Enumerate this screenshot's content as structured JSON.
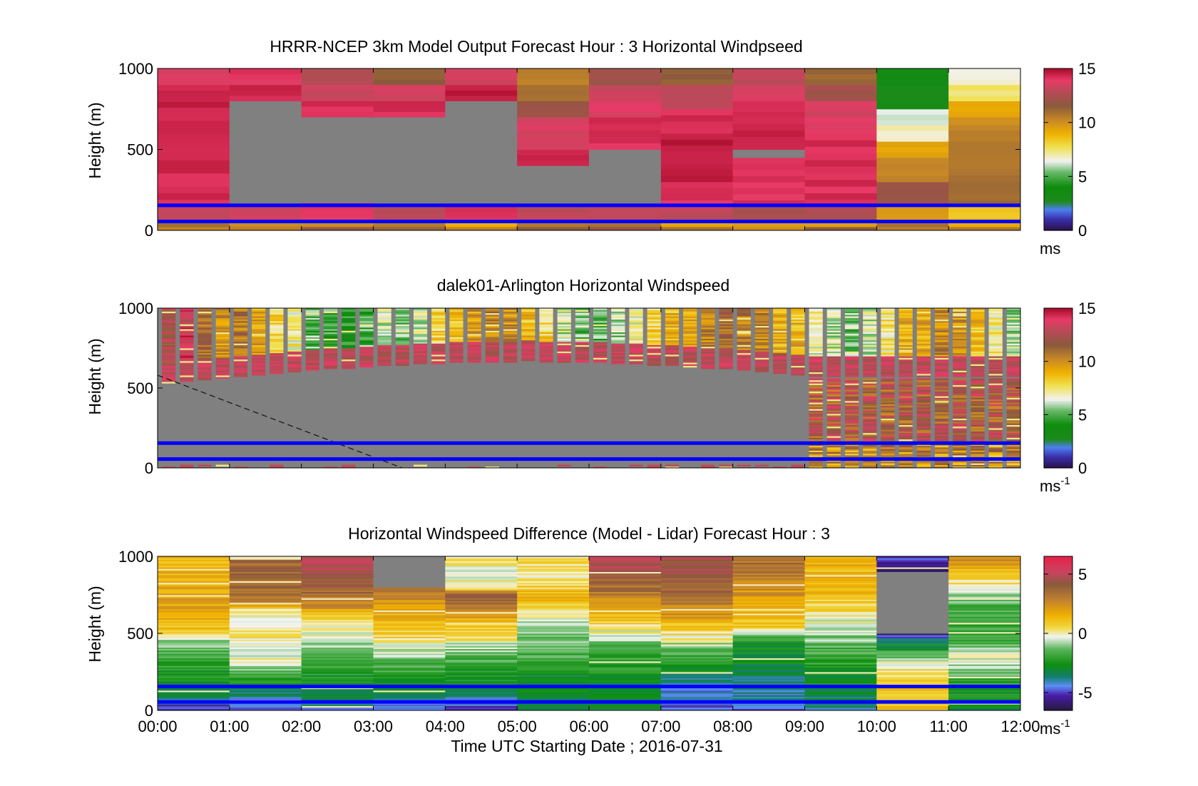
{
  "chart_data": [
    {
      "type": "heatmap",
      "title": "HRRR-NCEP 3km Model Output   Forecast Hour : 3 Horizontal Windpseed",
      "ylabel": "Height (m)",
      "ylim": [
        0,
        1000
      ],
      "yticks": [
        "0",
        "500",
        "1000"
      ],
      "xlim_hours": [
        0,
        12
      ],
      "colorbar": {
        "ticks": [
          "0",
          "5",
          "10",
          "15"
        ],
        "range": [
          0,
          15
        ],
        "unit": "ms",
        "unit_sup": ""
      },
      "horizontal_lines_m": [
        55,
        155
      ],
      "columns": [
        {
          "hour_start": 0,
          "cells": [
            [
              0,
              150,
              13
            ],
            [
              150,
              760,
              14.3
            ],
            [
              760,
              900,
              14.5
            ],
            [
              900,
              1000,
              13.6
            ]
          ]
        },
        {
          "hour_start": 1,
          "cells": [
            [
              0,
              150,
              13.5
            ],
            [
              150,
              800,
              -1
            ],
            [
              800,
              900,
              14.4
            ],
            [
              900,
              1000,
              14
            ]
          ]
        },
        {
          "hour_start": 2,
          "cells": [
            [
              0,
              170,
              14
            ],
            [
              170,
              700,
              -1
            ],
            [
              700,
              800,
              14.2
            ],
            [
              800,
              900,
              13.2
            ],
            [
              900,
              1000,
              12.8
            ]
          ]
        },
        {
          "hour_start": 3,
          "cells": [
            [
              0,
              150,
              13
            ],
            [
              150,
              700,
              -1
            ],
            [
              700,
              800,
              14.3
            ],
            [
              800,
              900,
              13.5
            ],
            [
              900,
              1000,
              11.4
            ]
          ]
        },
        {
          "hour_start": 4,
          "cells": [
            [
              0,
              150,
              14
            ],
            [
              150,
              800,
              -1
            ],
            [
              800,
              900,
              14.6
            ],
            [
              900,
              1000,
              13.4
            ]
          ]
        },
        {
          "hour_start": 5,
          "cells": [
            [
              0,
              150,
              13
            ],
            [
              150,
              400,
              -1
            ],
            [
              400,
              500,
              14.4
            ],
            [
              500,
              700,
              13.6
            ],
            [
              700,
              800,
              12
            ],
            [
              800,
              900,
              11
            ],
            [
              900,
              1000,
              10.6
            ]
          ]
        },
        {
          "hour_start": 6,
          "cells": [
            [
              0,
              150,
              13
            ],
            [
              150,
              500,
              -1
            ],
            [
              500,
              700,
              14.2
            ],
            [
              700,
              800,
              13.8
            ],
            [
              800,
              900,
              13.2
            ],
            [
              900,
              1000,
              12.1
            ]
          ]
        },
        {
          "hour_start": 7,
          "cells": [
            [
              0,
              150,
              13
            ],
            [
              150,
              300,
              14.1
            ],
            [
              300,
              600,
              14.7
            ],
            [
              600,
              750,
              14.2
            ],
            [
              750,
              900,
              13
            ],
            [
              900,
              1000,
              11.5
            ]
          ]
        },
        {
          "hour_start": 8,
          "cells": [
            [
              0,
              150,
              12.5
            ],
            [
              150,
              450,
              14.1
            ],
            [
              450,
              500,
              -1
            ],
            [
              500,
              700,
              14.5
            ],
            [
              700,
              800,
              14.2
            ],
            [
              800,
              900,
              13.6
            ],
            [
              900,
              1000,
              13
            ]
          ]
        },
        {
          "hour_start": 9,
          "cells": [
            [
              0,
              150,
              12.5
            ],
            [
              150,
              600,
              14.2
            ],
            [
              600,
              700,
              13.9
            ],
            [
              700,
              800,
              13.5
            ],
            [
              800,
              900,
              12.3
            ],
            [
              900,
              1000,
              11.3
            ]
          ]
        },
        {
          "hour_start": 10,
          "cells": [
            [
              0,
              150,
              9.5
            ],
            [
              150,
              300,
              12.2
            ],
            [
              300,
              450,
              10.2
            ],
            [
              450,
              550,
              9.4
            ],
            [
              550,
              650,
              6.9
            ],
            [
              650,
              750,
              6.2
            ],
            [
              750,
              900,
              3.1
            ],
            [
              900,
              1000,
              3.3
            ]
          ]
        },
        {
          "hour_start": 11,
          "cells": [
            [
              0,
              150,
              8.5
            ],
            [
              150,
              300,
              11
            ],
            [
              300,
              550,
              10.8
            ],
            [
              550,
              650,
              10.4
            ],
            [
              650,
              700,
              10.2
            ],
            [
              700,
              800,
              9.2
            ],
            [
              800,
              900,
              7.5
            ],
            [
              900,
              1000,
              6.6
            ]
          ]
        }
      ]
    },
    {
      "type": "heatmap",
      "title": "dalek01-Arlington  Horizontal Windspeed",
      "ylabel": "Height (m)",
      "ylim": [
        0,
        1000
      ],
      "yticks": [
        "0",
        "500",
        "1000"
      ],
      "xlim_hours": [
        0,
        12
      ],
      "colorbar": {
        "ticks": [
          "0",
          "5",
          "10",
          "15"
        ],
        "range": [
          0,
          15
        ],
        "unit": "ms",
        "unit_sup": "-1"
      },
      "horizontal_lines_m": [
        55,
        155
      ],
      "dashed_line": {
        "from": [
          0,
          580
        ],
        "to": [
          3.4,
          0
        ]
      },
      "profile_cols_per_hour": 4,
      "column_top_values": [
        12.4,
        13.6,
        11.1,
        9.8,
        10.6,
        9.3,
        7.8,
        7.1,
        5.4,
        4.7,
        4.1,
        4.9,
        6.1,
        5.7,
        6.3,
        7.9,
        8.5,
        9.8,
        10.4,
        9.8,
        8.8,
        8.0,
        6.3,
        5.5,
        5.1,
        5.9,
        7.1,
        7.8,
        9.1,
        9.6,
        10.2,
        11.0,
        10.7,
        10.4,
        9.2,
        8.9,
        7.0,
        6.1,
        5.6,
        6.5,
        7.4,
        8.9,
        9.4,
        10.1,
        9.7,
        8.8,
        7.2,
        6.0
      ]
    },
    {
      "type": "heatmap",
      "title": "Horizontal Windspeed Difference (Model - Lidar) Forecast Hour : 3",
      "xlabel": "Time UTC  Starting Date ; 2016-07-31",
      "ylabel": "Height (m)",
      "ylim": [
        0,
        1000
      ],
      "yticks": [
        "0",
        "500",
        "1000"
      ],
      "xticks": [
        "00:00",
        "01:00",
        "02:00",
        "03:00",
        "04:00",
        "05:00",
        "06:00",
        "07:00",
        "08:00",
        "09:00",
        "10:00",
        "11:00",
        "12:00"
      ],
      "xlim_hours": [
        0,
        12
      ],
      "colorbar": {
        "ticks": [
          "-5",
          "0",
          "5"
        ],
        "range": [
          -6.5,
          6.5
        ],
        "unit": "ms",
        "unit_sup": "-1"
      },
      "horizontal_lines_m": [
        55,
        155
      ],
      "columns": [
        {
          "hour_start": 0,
          "anchors": [
            [
              0,
              -5
            ],
            [
              150,
              -3
            ],
            [
              250,
              -2.5
            ],
            [
              450,
              -0.8
            ],
            [
              520,
              1
            ],
            [
              700,
              2
            ],
            [
              900,
              1.5
            ],
            [
              1000,
              1.5
            ]
          ]
        },
        {
          "hour_start": 1,
          "anchors": [
            [
              0,
              -5
            ],
            [
              150,
              -3
            ],
            [
              300,
              -0.5
            ],
            [
              500,
              0.5
            ],
            [
              550,
              0
            ],
            [
              650,
              0
            ],
            [
              700,
              3
            ],
            [
              850,
              3.8
            ],
            [
              1000,
              3.5
            ]
          ]
        },
        {
          "hour_start": 2,
          "anchors": [
            [
              0,
              -4
            ],
            [
              150,
              -3
            ],
            [
              400,
              -1
            ],
            [
              600,
              0.5
            ],
            [
              700,
              3
            ],
            [
              850,
              4.5
            ],
            [
              1000,
              5
            ]
          ]
        },
        {
          "hour_start": 3,
          "anchors": [
            [
              0,
              -5
            ],
            [
              150,
              -3
            ],
            [
              350,
              -1
            ],
            [
              500,
              0.8
            ],
            [
              700,
              2
            ],
            [
              800,
              4
            ],
            [
              900,
              -99
            ],
            [
              1000,
              -99
            ]
          ]
        },
        {
          "hour_start": 4,
          "anchors": [
            [
              0,
              -5
            ],
            [
              150,
              -3
            ],
            [
              300,
              -2
            ],
            [
              500,
              0.5
            ],
            [
              650,
              2.5
            ],
            [
              750,
              4.5
            ],
            [
              800,
              0
            ],
            [
              1000,
              0
            ]
          ]
        },
        {
          "hour_start": 5,
          "anchors": [
            [
              0,
              -3.5
            ],
            [
              150,
              -3
            ],
            [
              400,
              -1.5
            ],
            [
              600,
              -0.2
            ],
            [
              750,
              1.5
            ],
            [
              850,
              0
            ],
            [
              1000,
              0.5
            ]
          ]
        },
        {
          "hour_start": 6,
          "anchors": [
            [
              0,
              -2.5
            ],
            [
              150,
              -3
            ],
            [
              400,
              -1.5
            ],
            [
              600,
              1
            ],
            [
              750,
              3
            ],
            [
              900,
              4.5
            ],
            [
              1000,
              5
            ]
          ]
        },
        {
          "hour_start": 7,
          "anchors": [
            [
              0,
              -5
            ],
            [
              150,
              -4
            ],
            [
              350,
              -2
            ],
            [
              600,
              2
            ],
            [
              800,
              4
            ],
            [
              1000,
              4.5
            ]
          ]
        },
        {
          "hour_start": 8,
          "anchors": [
            [
              0,
              -5
            ],
            [
              150,
              -3.5
            ],
            [
              450,
              -2.5
            ],
            [
              550,
              1
            ],
            [
              800,
              2.5
            ],
            [
              1000,
              3.5
            ]
          ]
        },
        {
          "hour_start": 9,
          "anchors": [
            [
              0,
              -4
            ],
            [
              150,
              -3
            ],
            [
              400,
              -1.5
            ],
            [
              600,
              0
            ],
            [
              800,
              1.5
            ],
            [
              1000,
              1.5
            ]
          ]
        },
        {
          "hour_start": 10,
          "anchors": [
            [
              0,
              1
            ],
            [
              150,
              1
            ],
            [
              300,
              0
            ],
            [
              450,
              -3.5
            ],
            [
              500,
              -6
            ],
            [
              550,
              -99
            ],
            [
              900,
              -6
            ],
            [
              1000,
              -5
            ]
          ]
        },
        {
          "hour_start": 11,
          "anchors": [
            [
              0,
              -3
            ],
            [
              150,
              -2.5
            ],
            [
              350,
              0
            ],
            [
              450,
              -2
            ],
            [
              700,
              -1.5
            ],
            [
              850,
              0.5
            ],
            [
              1000,
              2.5
            ]
          ]
        }
      ]
    }
  ]
}
